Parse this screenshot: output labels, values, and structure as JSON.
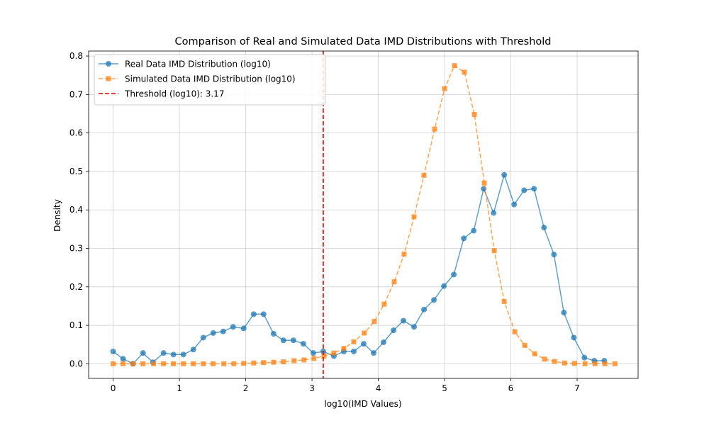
{
  "chart_data": {
    "type": "line",
    "title": "Comparison of Real and Simulated Data IMD Distributions with Threshold",
    "xlabel": "log10(IMD Values)",
    "ylabel": "Density",
    "xlim": [
      -0.37,
      7.92
    ],
    "ylim": [
      -0.038,
      0.813
    ],
    "xticks": [
      0,
      1,
      2,
      3,
      4,
      5,
      6,
      7
    ],
    "xtick_labels": [
      "0",
      "1",
      "2",
      "3",
      "4",
      "5",
      "6",
      "7"
    ],
    "yticks": [
      0.0,
      0.1,
      0.2,
      0.3,
      0.4,
      0.5,
      0.6,
      0.7,
      0.8
    ],
    "ytick_labels": [
      "0.0",
      "0.1",
      "0.2",
      "0.3",
      "0.4",
      "0.5",
      "0.6",
      "0.7",
      "0.8"
    ],
    "grid": true,
    "legend_position": "top-left",
    "series": [
      {
        "name": "Real Data IMD Distribution (log10)",
        "color": "#1f77b4",
        "marker": "circle",
        "linestyle": "solid",
        "x": [
          0.0,
          0.15,
          0.3,
          0.45,
          0.6,
          0.76,
          0.91,
          1.06,
          1.21,
          1.36,
          1.51,
          1.66,
          1.81,
          1.97,
          2.12,
          2.27,
          2.42,
          2.57,
          2.72,
          2.87,
          3.02,
          3.17,
          3.33,
          3.48,
          3.63,
          3.78,
          3.93,
          4.08,
          4.23,
          4.38,
          4.54,
          4.69,
          4.84,
          4.99,
          5.14,
          5.29,
          5.44,
          5.59,
          5.74,
          5.9,
          6.05,
          6.2,
          6.35,
          6.5,
          6.65,
          6.8,
          6.95,
          7.11,
          7.26,
          7.41
        ],
        "y": [
          0.032,
          0.013,
          0.0,
          0.028,
          0.004,
          0.028,
          0.024,
          0.024,
          0.037,
          0.068,
          0.08,
          0.084,
          0.096,
          0.092,
          0.129,
          0.129,
          0.078,
          0.061,
          0.061,
          0.052,
          0.028,
          0.032,
          0.02,
          0.032,
          0.032,
          0.052,
          0.028,
          0.056,
          0.087,
          0.112,
          0.096,
          0.141,
          0.166,
          0.202,
          0.232,
          0.326,
          0.346,
          0.455,
          0.392,
          0.491,
          0.414,
          0.451,
          0.455,
          0.354,
          0.284,
          0.133,
          0.068,
          0.016,
          0.008,
          0.008
        ]
      },
      {
        "name": "Simulated Data IMD Distribution (log10)",
        "color": "#ff7f0e",
        "marker": "square",
        "linestyle": "dashed",
        "x": [
          0.0,
          0.15,
          0.3,
          0.45,
          0.61,
          0.76,
          0.91,
          1.06,
          1.21,
          1.36,
          1.51,
          1.67,
          1.82,
          1.97,
          2.12,
          2.27,
          2.42,
          2.57,
          2.73,
          2.88,
          3.03,
          3.18,
          3.33,
          3.48,
          3.63,
          3.79,
          3.94,
          4.09,
          4.24,
          4.39,
          4.54,
          4.69,
          4.85,
          5.0,
          5.15,
          5.3,
          5.45,
          5.6,
          5.75,
          5.9,
          6.06,
          6.21,
          6.36,
          6.51,
          6.66,
          6.81,
          6.96,
          7.12,
          7.27,
          7.42,
          7.57
        ],
        "y": [
          0.0,
          0.0,
          0.0,
          0.0,
          0.0,
          0.0,
          0.0,
          0.0,
          0.0,
          0.0,
          0.0,
          0.0,
          0.0,
          0.001,
          0.002,
          0.003,
          0.004,
          0.005,
          0.008,
          0.01,
          0.014,
          0.02,
          0.028,
          0.04,
          0.057,
          0.08,
          0.11,
          0.155,
          0.213,
          0.285,
          0.382,
          0.49,
          0.61,
          0.715,
          0.775,
          0.758,
          0.648,
          0.47,
          0.294,
          0.162,
          0.083,
          0.048,
          0.026,
          0.012,
          0.006,
          0.002,
          0.001,
          0.0,
          0.0,
          0.0,
          0.0
        ]
      },
      {
        "name": "Threshold (log10): 3.17",
        "color": "#e00000",
        "linestyle": "dashed",
        "type": "vline",
        "x_value": 3.17
      }
    ]
  }
}
